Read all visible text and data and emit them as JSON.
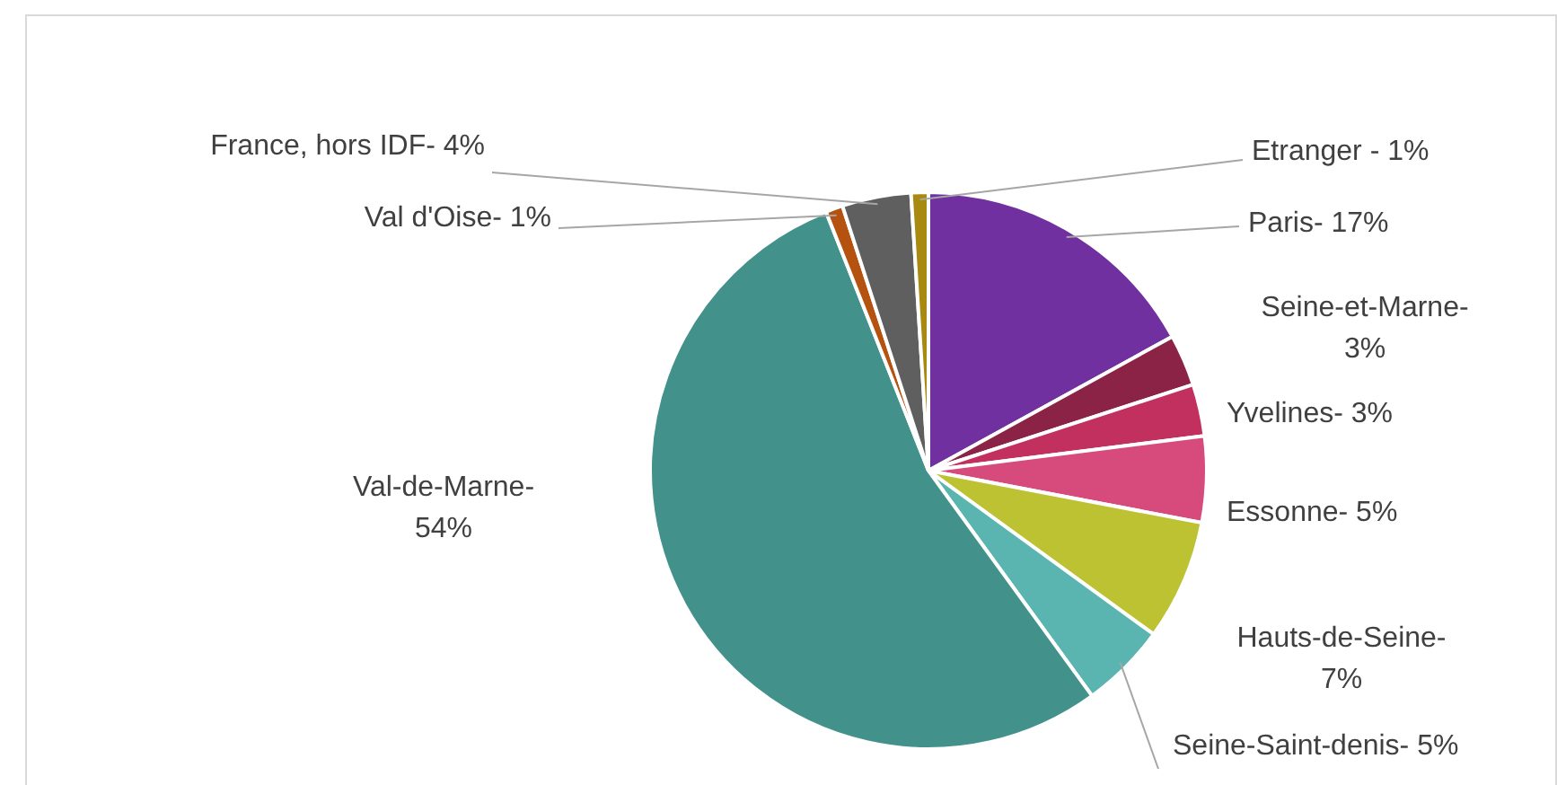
{
  "chart_data": {
    "type": "pie",
    "categories": [
      "Paris-",
      "Seine-et-Marne-",
      "Yvelines-",
      "Essonne-",
      "Hauts-de-Seine-",
      "Seine-Saint-denis-",
      "Val-de-Marne-",
      "Val d'Oise-",
      "France, hors IDF-",
      "Etranger -"
    ],
    "values": [
      17,
      3,
      3,
      5,
      7,
      5,
      54,
      1,
      4,
      1
    ],
    "value_labels": [
      "17%",
      "3%",
      "3%",
      "5%",
      "7%",
      "5%",
      "54%",
      "1%",
      "4%",
      "1%"
    ],
    "colors": [
      "#7030a0",
      "#8b2346",
      "#c2305f",
      "#d64a7c",
      "#bcc232",
      "#5ab5b0",
      "#42918b",
      "#b5520f",
      "#5f5f5f",
      "#a88a10"
    ]
  }
}
